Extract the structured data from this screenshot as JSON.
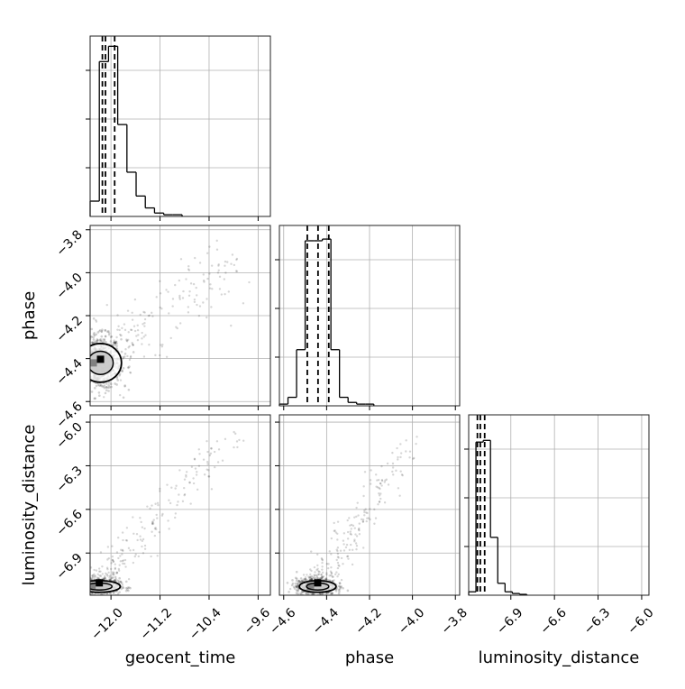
{
  "chart_data": {
    "type": "corner",
    "parameters": [
      "geocent_time",
      "phase",
      "luminosity_distance"
    ],
    "grid": true,
    "panels": [
      {
        "kind": "histogram",
        "parameter": "geocent_time",
        "xlim": [
          -12.34,
          -9.4
        ],
        "bins": [
          -12.34,
          -12.19,
          -12.04,
          -11.89,
          -11.74,
          -11.59,
          -11.44,
          -11.29,
          -11.14,
          -10.99,
          -10.84
        ],
        "counts": [
          0.09,
          0.91,
          1.0,
          0.54,
          0.26,
          0.12,
          0.05,
          0.02,
          0.01,
          0.01
        ],
        "quantile_lines": [
          -12.14,
          -12.09,
          -11.94
        ]
      },
      {
        "kind": "histogram",
        "parameter": "phase",
        "xlim": [
          -4.62,
          -3.78
        ],
        "bins": [
          -4.62,
          -4.58,
          -4.54,
          -4.5,
          -4.46,
          -4.42,
          -4.38,
          -4.34,
          -4.3,
          -4.26,
          -4.22,
          -4.18
        ],
        "counts": [
          0.01,
          0.05,
          0.33,
          0.97,
          0.97,
          0.98,
          0.33,
          0.05,
          0.02,
          0.01,
          0.01
        ],
        "quantile_lines": [
          -4.49,
          -4.44,
          -4.39
        ]
      },
      {
        "kind": "histogram",
        "parameter": "luminosity_distance",
        "xlim": [
          -7.19,
          -5.95
        ],
        "bins": [
          -7.19,
          -7.14,
          -7.09,
          -7.04,
          -6.99,
          -6.94,
          -6.89,
          -6.84,
          -6.79
        ],
        "counts": [
          0.02,
          0.9,
          0.91,
          0.34,
          0.07,
          0.02,
          0.01,
          0.005
        ],
        "quantile_lines": [
          -7.13,
          -7.11,
          -7.08
        ]
      },
      {
        "kind": "scatter",
        "x": "geocent_time",
        "y": "phase",
        "xlim": [
          -12.34,
          -9.4
        ],
        "ylim": [
          -4.62,
          -3.78
        ],
        "center": [
          -12.2,
          -4.42
        ],
        "spread_x": 0.18,
        "spread_y": 0.045,
        "tail_end": [
          -10.0,
          -3.95
        ]
      },
      {
        "kind": "scatter",
        "x": "geocent_time",
        "y": "luminosity_distance",
        "xlim": [
          -12.34,
          -9.4
        ],
        "ylim": [
          -7.19,
          -5.95
        ],
        "center": [
          -12.22,
          -7.13
        ],
        "spread_x": 0.18,
        "spread_y": 0.02,
        "tail_end": [
          -10.0,
          -6.05
        ]
      },
      {
        "kind": "scatter",
        "x": "phase",
        "y": "luminosity_distance",
        "xlim": [
          -4.62,
          -3.78
        ],
        "ylim": [
          -7.19,
          -5.95
        ],
        "center": [
          -4.45,
          -7.13
        ],
        "spread_x": 0.045,
        "spread_y": 0.02,
        "tail_end": [
          -4.0,
          -6.1
        ]
      }
    ],
    "ticks": {
      "geocent_time": [
        -12.0,
        -11.2,
        -10.4,
        -9.6
      ],
      "phase": [
        -4.6,
        -4.4,
        -4.2,
        -4.0,
        -3.8
      ],
      "luminosity_distance": [
        -6.9,
        -6.6,
        -6.3,
        -6.0
      ]
    },
    "tick_labels": {
      "geocent_time": [
        "−12.0",
        "−11.2",
        "−10.4",
        "−9.6"
      ],
      "phase_x": [
        "−4.6",
        "−4.4",
        "−4.2",
        "−4.0",
        "−3.8"
      ],
      "phase_y": [
        "−3.8",
        "−4.0",
        "−4.2",
        "−4.4",
        "−4.6"
      ],
      "luminosity_distance_x": [
        "−6.9",
        "−6.6",
        "−6.3",
        "−6.0"
      ],
      "luminosity_distance_y": [
        "−6.0",
        "−6.3",
        "−6.6",
        "−6.9"
      ]
    },
    "axis_labels": {
      "x": [
        "geocent_time",
        "phase",
        "luminosity_distance"
      ],
      "y": [
        "phase",
        "luminosity_distance"
      ]
    }
  }
}
